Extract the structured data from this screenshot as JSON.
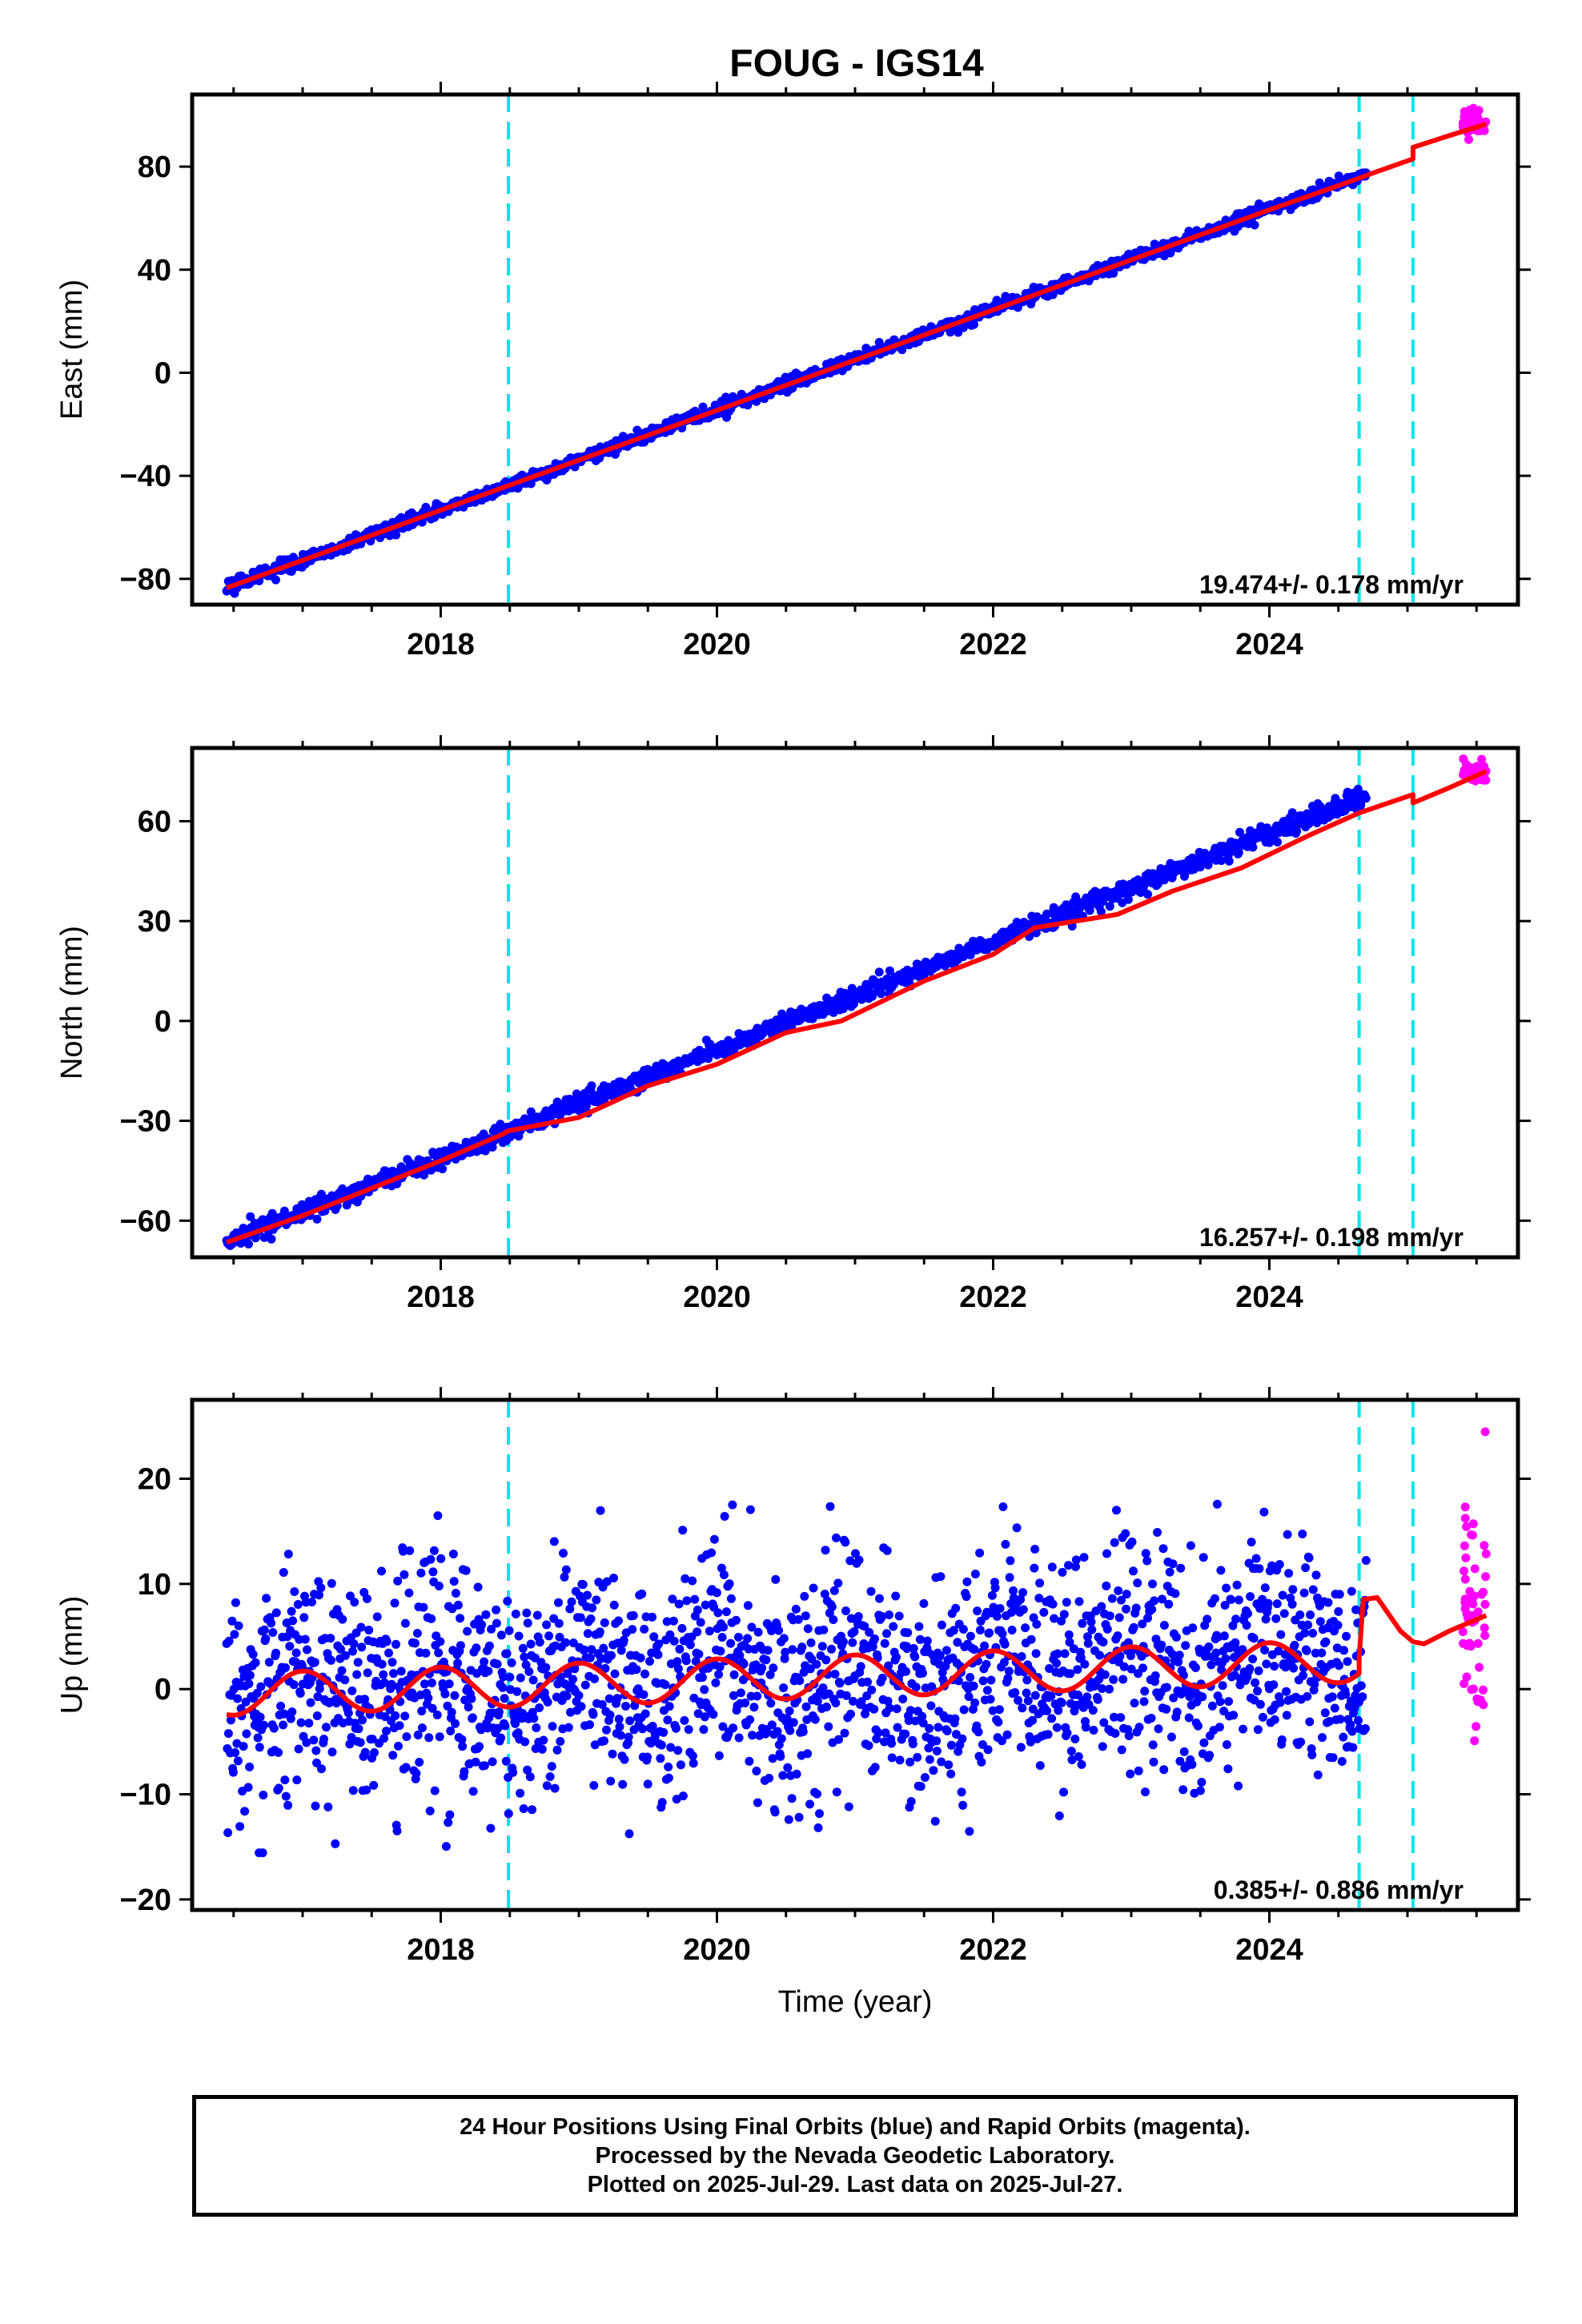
{
  "title": "FOUG - IGS14",
  "colors": {
    "final_orbits": "#0000ff",
    "rapid_orbits": "#ff00ff",
    "model": "#ff0000",
    "events": "#00e5ee",
    "axes": "#000000"
  },
  "chart_data": [
    {
      "type": "scatter",
      "title": "FOUG - IGS14",
      "ylabel": "East (mm)",
      "xlabel": "",
      "xlim": [
        2016.2,
        2025.8
      ],
      "ylim": [
        -90,
        108
      ],
      "xticks": [
        2018,
        2020,
        2022,
        2024
      ],
      "yticks": [
        -80,
        -40,
        0,
        40,
        80
      ],
      "event_lines": [
        2018.49,
        2024.65,
        2025.04
      ],
      "rate_label": "19.474+/- 0.178 mm/yr",
      "series": [
        {
          "name": "final_orbits",
          "color": "#0000ff",
          "x_range": [
            2016.45,
            2024.7
          ],
          "trend": {
            "start": -83.5,
            "rate": 19.474
          },
          "noise": 1.3
        },
        {
          "name": "rapid_orbits",
          "color": "#ff00ff",
          "x_range": [
            2025.4,
            2025.57
          ],
          "center": 97,
          "noise": 2.5
        }
      ],
      "model": [
        [
          2016.45,
          -83.5
        ],
        [
          2018.49,
          -43.8
        ],
        [
          2020,
          -14.6
        ],
        [
          2022,
          24.4
        ],
        [
          2024,
          63.2
        ],
        [
          2024.65,
          75.5
        ],
        [
          2024.75,
          77.5
        ],
        [
          2025.04,
          83.0
        ],
        [
          2025.04,
          87.5
        ],
        [
          2025.3,
          92.0
        ],
        [
          2025.57,
          96.5
        ]
      ]
    },
    {
      "type": "scatter",
      "ylabel": "North (mm)",
      "xlabel": "",
      "xlim": [
        2016.2,
        2025.8
      ],
      "ylim": [
        -71,
        82
      ],
      "xticks": [
        2018,
        2020,
        2022,
        2024
      ],
      "yticks": [
        -60,
        -30,
        0,
        30,
        60
      ],
      "event_lines": [
        2018.49,
        2024.65,
        2025.04
      ],
      "rate_label": "16.257+/- 0.198 mm/yr",
      "series": [
        {
          "name": "final_orbits",
          "color": "#0000ff",
          "x_range": [
            2016.45,
            2024.7
          ],
          "trend": {
            "start": -66.5,
            "rate": 16.257
          },
          "noise": 1.4
        },
        {
          "name": "rapid_orbits",
          "color": "#ff00ff",
          "x_range": [
            2025.4,
            2025.57
          ],
          "center": 75,
          "noise": 1.5
        }
      ],
      "model": [
        [
          2016.45,
          -66.5
        ],
        [
          2017,
          -58.5
        ],
        [
          2018,
          -42.0
        ],
        [
          2018.45,
          -34.0
        ],
        [
          2018.49,
          -33.0
        ],
        [
          2019,
          -29.0
        ],
        [
          2019.5,
          -19.5
        ],
        [
          2020,
          -13.0
        ],
        [
          2020.5,
          -3.5
        ],
        [
          2020.9,
          0.0
        ],
        [
          2021.5,
          12.0
        ],
        [
          2022,
          20.0
        ],
        [
          2022.3,
          28.0
        ],
        [
          2022.9,
          32.0
        ],
        [
          2023.3,
          39.0
        ],
        [
          2023.8,
          46.0
        ],
        [
          2024.3,
          56.0
        ],
        [
          2024.65,
          62.5
        ],
        [
          2025.04,
          68.0
        ],
        [
          2025.04,
          65.5
        ],
        [
          2025.3,
          70.0
        ],
        [
          2025.57,
          75.0
        ]
      ]
    },
    {
      "type": "scatter",
      "ylabel": "Up (mm)",
      "xlabel": "Time (year)",
      "xlim": [
        2016.2,
        2025.8
      ],
      "ylim": [
        -21,
        27.5
      ],
      "xticks": [
        2018,
        2020,
        2022,
        2024
      ],
      "yticks": [
        -20,
        -10,
        0,
        10,
        20
      ],
      "event_lines": [
        2018.49,
        2024.65,
        2025.04
      ],
      "rate_label": "0.385+/- 0.886 mm/yr",
      "series": [
        {
          "name": "final_orbits",
          "color": "#0000ff",
          "x_range": [
            2016.45,
            2024.7
          ],
          "trend": {
            "start": 0,
            "rate": 0.385
          },
          "noise": 5.5
        },
        {
          "name": "rapid_orbits",
          "color": "#ff00ff",
          "x_range": [
            2025.4,
            2025.57
          ],
          "center": 7,
          "noise": 6.5
        }
      ],
      "model_seasonal": {
        "amplitude": 2.0,
        "phase_year": 0.75,
        "offset_start": -0.5,
        "rate": 0.385
      },
      "model_tail": [
        [
          2024.65,
          3.0
        ],
        [
          2024.68,
          8.5
        ],
        [
          2024.78,
          8.7
        ],
        [
          2024.95,
          5.5
        ],
        [
          2025.04,
          4.5
        ],
        [
          2025.12,
          4.3
        ],
        [
          2025.3,
          5.5
        ],
        [
          2025.57,
          7.0
        ]
      ]
    }
  ],
  "caption": {
    "line1": "24 Hour Positions Using Final Orbits (blue) and Rapid Orbits (magenta).",
    "line2": "Processed by the Nevada Geodetic Laboratory.",
    "line3": "Plotted on 2025-Jul-29. Last data on 2025-Jul-27."
  }
}
